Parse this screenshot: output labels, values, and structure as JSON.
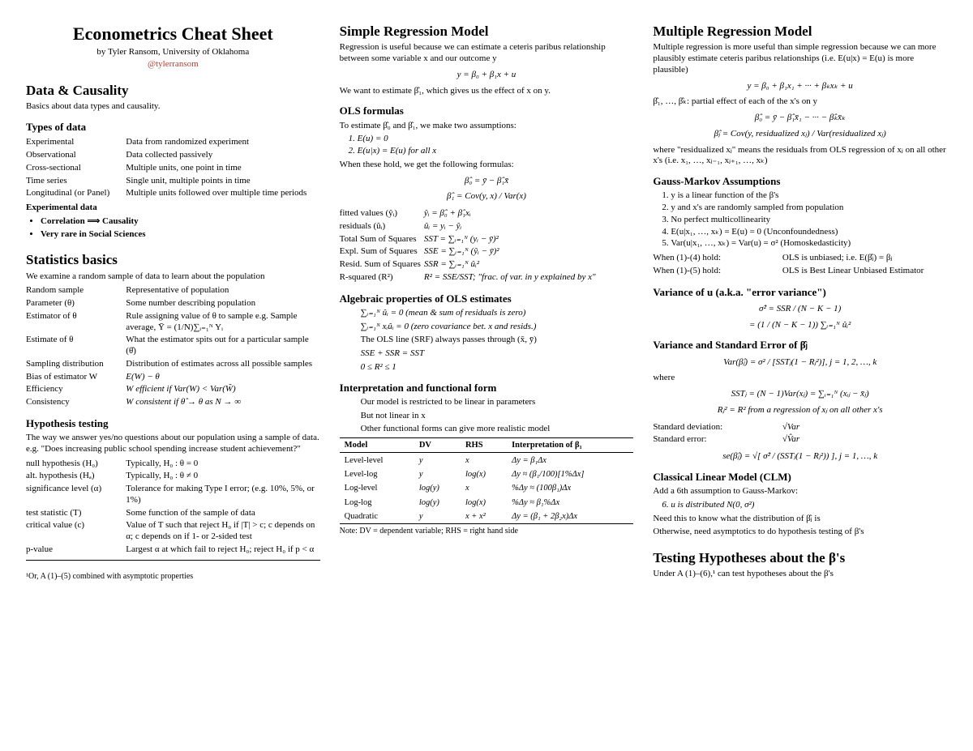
{
  "header": {
    "title": "Econometrics Cheat Sheet",
    "subtitle": "by Tyler Ransom, University of Oklahoma",
    "handle": "@tylerransom"
  },
  "col1": {
    "s1": {
      "h": "Data & Causality",
      "p": "Basics about data types and causality."
    },
    "types": {
      "h": "Types of data",
      "rows": [
        [
          "Experimental",
          "Data from randomized experiment"
        ],
        [
          "Observational",
          "Data collected passively"
        ],
        [
          "Cross-sectional",
          "Multiple units, one point in time"
        ],
        [
          "Time series",
          "Single unit, multiple points in time"
        ],
        [
          "Longitudinal (or Panel)",
          "Multiple units followed over multiple time periods"
        ]
      ]
    },
    "exp": {
      "h": "Experimental data",
      "b1": "Correlation ⟹ Causality",
      "b2": "Very rare in Social Sciences"
    },
    "stats": {
      "h": "Statistics basics",
      "p": "We examine a random sample of data to learn about the population",
      "rows": [
        [
          "Random sample",
          "Representative of population"
        ],
        [
          "Parameter (θ)",
          "Some number describing population"
        ],
        [
          "Estimator of θ",
          "Rule assigning value of θ to sample e.g. Sample average, Ȳ = (1/N)∑ᵢ₌₁ᴺ Yᵢ"
        ],
        [
          "Estimate of θ",
          "What the estimator spits out for a particular sample (θ̂)"
        ],
        [
          "Sampling distribution",
          "Distribution of estimates across all possible samples"
        ],
        [
          "Bias of estimator W",
          "E(W) − θ"
        ],
        [
          "Efficiency",
          "W efficient if Var(W) < Var(W̃)"
        ],
        [
          "Consistency",
          "W consistent if θ̂ → θ as N → ∞"
        ]
      ]
    },
    "hyp": {
      "h": "Hypothesis testing",
      "p": "The way we answer yes/no questions about our population using a sample of data. e.g. \"Does increasing public school spending increase student achievement?\"",
      "rows": [
        [
          "null hypothesis (H₀)",
          "Typically, H₀ : θ = 0"
        ],
        [
          "alt. hypothesis (Hₐ)",
          "Typically, H₀ : θ ≠ 0"
        ],
        [
          "significance level (α)",
          "Tolerance for making Type I error; (e.g. 10%, 5%, or 1%)"
        ],
        [
          "test statistic (T)",
          "Some function of the sample of data"
        ],
        [
          "critical value (c)",
          "Value of T such that reject H₀ if |T| > c; c depends on α; c depends on if 1- or 2-sided test"
        ],
        [
          "p-value",
          "Largest α at which fail to reject H₀; reject H₀ if p < α"
        ]
      ]
    },
    "fn": "¹Or, A (1)–(5) combined with asymptotic properties"
  },
  "col2": {
    "s1": {
      "h": "Simple Regression Model",
      "p": "Regression is useful because we can estimate a ceteris paribus relationship between some variable x and our outcome y",
      "eq": "y = β₀ + β₁x + u",
      "p2": "We want to estimate β̂₁, which gives us the effect of x on y."
    },
    "ols": {
      "h": "OLS formulas",
      "p": "To estimate β̂₀ and β̂₁, we make two assumptions:",
      "a1": "E(u) = 0",
      "a2": "E(u|x) = E(u) for all x",
      "p2": "When these hold, we get the following formulas:",
      "eq1": "β̂₀ = ȳ − β̂₁x̄",
      "eq2": "β̂₁ = Cov(y, x) / Var(x)",
      "rows": [
        [
          "fitted values (ŷᵢ)",
          "ŷᵢ = β̂₀ + β̂₁xᵢ"
        ],
        [
          "residuals (ûᵢ)",
          "ûᵢ = yᵢ − ŷᵢ"
        ],
        [
          "Total Sum of Squares",
          "SST = ∑ᵢ₌₁ᴺ (yᵢ − ȳ)²"
        ],
        [
          "Expl. Sum of Squares",
          "SSE = ∑ᵢ₌₁ᴺ (ŷᵢ − ȳ)²"
        ],
        [
          "Resid. Sum of Squares",
          "SSR = ∑ᵢ₌₁ᴺ ûᵢ²"
        ],
        [
          "R-squared (R²)",
          "R² = SSE/SST;  \"frac. of var. in y explained by x\""
        ]
      ]
    },
    "alg": {
      "h": "Algebraic properties of OLS estimates",
      "l1": "∑ᵢ₌₁ᴺ ûᵢ = 0 (mean & sum of residuals is zero)",
      "l2": "∑ᵢ₌₁ᴺ xᵢûᵢ = 0 (zero covariance bet. x and resids.)",
      "l3": "The OLS line (SRF) always passes through (x̄, ȳ)",
      "l4": "SSE + SSR = SST",
      "l5": "0 ≤ R² ≤ 1"
    },
    "interp": {
      "h": "Interpretation and functional form",
      "l1": "Our model is restricted to be linear in parameters",
      "l2": "But not linear in x",
      "l3": "Other functional forms can give more realistic model"
    },
    "ftab": {
      "head": [
        "Model",
        "DV",
        "RHS",
        "Interpretation of β₁"
      ],
      "rows": [
        [
          "Level-level",
          "y",
          "x",
          "Δy = β₁Δx"
        ],
        [
          "Level-log",
          "y",
          "log(x)",
          "Δy ≈ (β₁/100)[1%Δx]"
        ],
        [
          "Log-level",
          "log(y)",
          "x",
          "%Δy ≈ (100β₁)Δx"
        ],
        [
          "Log-log",
          "log(y)",
          "log(x)",
          "%Δy ≈ β₁%Δx"
        ],
        [
          "Quadratic",
          "y",
          "x + x²",
          "Δy = (β₁ + 2β₂x)Δx"
        ]
      ],
      "note": "Note: DV = dependent variable; RHS = right hand side"
    }
  },
  "col3": {
    "s1": {
      "h": "Multiple Regression Model",
      "p": "Multiple regression is more useful than simple regression because we can more plausibly estimate ceteris paribus relationships (i.e. E(u|x) = E(u) is more plausible)",
      "eq": "y = β₀ + β₁x₁ + ··· + βₖxₖ + u",
      "p2": "β̂₁, …, β̂ₖ:  partial effect of each of the x's on y",
      "eq2": "β̂₀ = ȳ − β̂₁x̄₁ − ··· − β̂ₖx̄ₖ",
      "eq3": "β̂ⱼ = Cov(y, residualized xⱼ) / Var(residualized xⱼ)",
      "p3": "where \"residualized xⱼ\" means the residuals from OLS regression of xⱼ on all other x's (i.e. x₁, …, xⱼ₋₁, xⱼ₊₁, …, xₖ)"
    },
    "gm": {
      "h": "Gauss-Markov Assumptions",
      "a1": "y is a linear function of the β's",
      "a2": "y and x's are randomly sampled from population",
      "a3": "No perfect multicollinearity",
      "a4": "E(u|x₁, …, xₖ) = E(u) = 0 (Unconfoundedness)",
      "a5": "Var(u|x₁, …, xₖ) = Var(u) = σ² (Homoskedasticity)",
      "r1": [
        "When (1)-(4) hold:",
        "OLS is unbiased; i.e. E(β̂ⱼ) = βⱼ"
      ],
      "r2": [
        "When (1)-(5) hold:",
        "OLS is Best Linear Unbiased Estimator"
      ]
    },
    "varu": {
      "h": "Variance of u (a.k.a. \"error variance\")",
      "eq1": "σ̂² = SSR / (N − K − 1)",
      "eq2": "= (1 / (N − K − 1)) ∑ᵢ₌₁ᴺ ûᵢ²"
    },
    "varb": {
      "h": "Variance and Standard Error of β̂ⱼ",
      "eq1": "Var(β̂ⱼ) = σ² / [SSTⱼ(1 − Rⱼ²)],  j = 1, 2, …, k",
      "w": "where",
      "eq2": "SSTⱼ = (N − 1)Var(xⱼ) = ∑ᵢ₌₁ᴺ (xᵢⱼ − x̄ⱼ)",
      "eq3": "Rⱼ² = R² from a regression of xⱼ on all other x's",
      "r1": [
        "Standard deviation:",
        "√Var"
      ],
      "r2": [
        "Standard error:",
        "√V̂ar"
      ],
      "eq4": "se(β̂ⱼ) = √[ σ̂² / (SSTⱼ(1 − Rⱼ²)) ],  j = 1, …, k"
    },
    "clm": {
      "h": "Classical Linear Model (CLM)",
      "p": "Add a 6th assumption to Gauss-Markov:",
      "a6": "u is distributed N(0, σ²)",
      "p2": "Need this to know what the distribution of β̂ⱼ is",
      "p3": "Otherwise, need asymptotics to do hypothesis testing of β's"
    },
    "test": {
      "h": "Testing Hypotheses about the β's",
      "p": "Under A (1)–(6),¹ can test hypotheses about the β's"
    }
  }
}
